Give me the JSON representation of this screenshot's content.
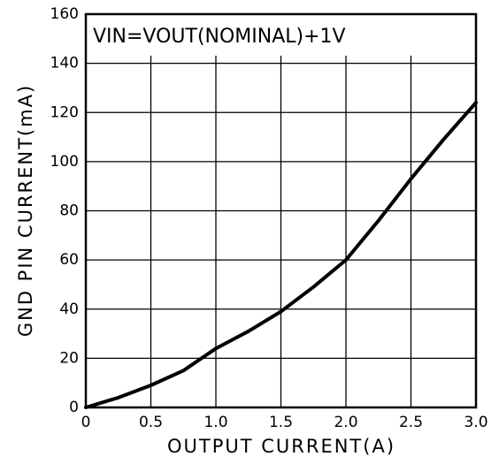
{
  "chart_data": {
    "type": "line",
    "annotation": "VIN=VOUT(NOMINAL)+1V",
    "x_label": "OUTPUT CURRENT(A)",
    "y_label": "GND PIN CURRENT(mA)",
    "x": [
      0,
      0.25,
      0.5,
      0.75,
      1.0,
      1.25,
      1.5,
      1.75,
      2.0,
      2.25,
      2.5,
      2.75,
      3.0
    ],
    "values": [
      0,
      4,
      9,
      15,
      24,
      31,
      39,
      49,
      60,
      76,
      93,
      109,
      124
    ],
    "color": "#000000",
    "xlim": [
      0,
      3.0
    ],
    "xticks": [
      0,
      0.5,
      {
        "value": 1.0,
        "label": "1.0"
      },
      1.5,
      {
        "value": 2.0,
        "label": "2.0"
      },
      2.5,
      {
        "value": 3.0,
        "label": "3.0"
      }
    ],
    "ylim": [
      0,
      160
    ],
    "yticks": [
      0,
      20,
      40,
      60,
      80,
      100,
      120,
      140,
      160
    ],
    "grid": true
  }
}
